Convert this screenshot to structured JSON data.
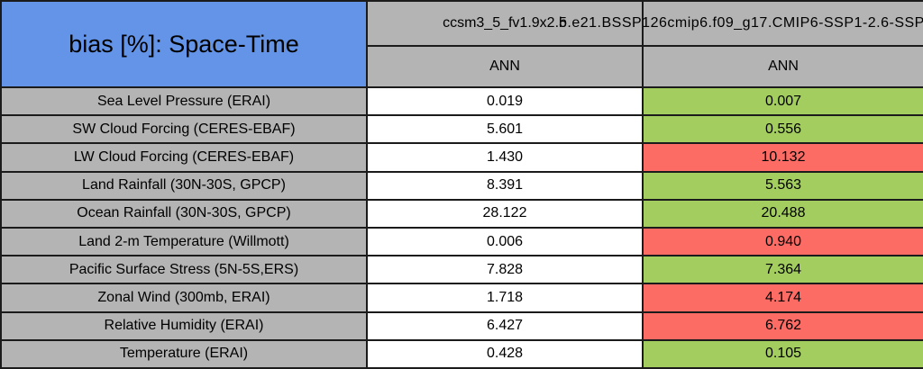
{
  "title": "bias [%]: Space-Time",
  "columns": [
    {
      "model": "ccsm3_5_fv1.9x2.5",
      "season": "ANN"
    },
    {
      "model": "b.e21.BSSP126cmip6.f09_g17.CMIP6-SSP1-2.6-SSP",
      "season": "ANN"
    }
  ],
  "rows": [
    {
      "label": "Sea Level Pressure (ERAI)",
      "values": [
        "0.019",
        "0.007"
      ],
      "col2_status": "better"
    },
    {
      "label": "SW Cloud Forcing (CERES-EBAF)",
      "values": [
        "5.601",
        "0.556"
      ],
      "col2_status": "better"
    },
    {
      "label": "LW Cloud Forcing (CERES-EBAF)",
      "values": [
        "1.430",
        "10.132"
      ],
      "col2_status": "worse"
    },
    {
      "label": "Land Rainfall (30N-30S, GPCP)",
      "values": [
        "8.391",
        "5.563"
      ],
      "col2_status": "better"
    },
    {
      "label": "Ocean Rainfall (30N-30S, GPCP)",
      "values": [
        "28.122",
        "20.488"
      ],
      "col2_status": "better"
    },
    {
      "label": "Land 2-m Temperature (Willmott)",
      "values": [
        "0.006",
        "0.940"
      ],
      "col2_status": "worse"
    },
    {
      "label": "Pacific Surface Stress (5N-5S,ERS)",
      "values": [
        "7.828",
        "7.364"
      ],
      "col2_status": "better"
    },
    {
      "label": "Zonal Wind (300mb, ERAI)",
      "values": [
        "1.718",
        "4.174"
      ],
      "col2_status": "worse"
    },
    {
      "label": "Relative Humidity (ERAI)",
      "values": [
        "6.427",
        "6.762"
      ],
      "col2_status": "worse"
    },
    {
      "label": "Temperature (ERAI)",
      "values": [
        "0.428",
        "0.105"
      ],
      "col2_status": "better"
    }
  ],
  "colors": {
    "title_blue": "#6394E8",
    "cell_gray": "#B4B4B4",
    "better": "#A3CE5F",
    "worse": "#FC6C65"
  },
  "chart_data": {
    "type": "table",
    "title": "bias [%]: Space-Time",
    "columns": [
      "Variable",
      "ccsm3_5_fv1.9x2.5 (ANN)",
      "b.e21.BSSP126cmip6.f09_g17.CMIP6-SSP1-2.6-SSP (ANN)"
    ],
    "rows": [
      [
        "Sea Level Pressure (ERAI)",
        0.019,
        0.007
      ],
      [
        "SW Cloud Forcing (CERES-EBAF)",
        5.601,
        0.556
      ],
      [
        "LW Cloud Forcing (CERES-EBAF)",
        1.43,
        10.132
      ],
      [
        "Land Rainfall (30N-30S, GPCP)",
        8.391,
        5.563
      ],
      [
        "Ocean Rainfall (30N-30S, GPCP)",
        28.122,
        20.488
      ],
      [
        "Land 2-m Temperature (Willmott)",
        0.006,
        0.94
      ],
      [
        "Pacific Surface Stress (5N-5S,ERS)",
        7.828,
        7.364
      ],
      [
        "Zonal Wind (300mb, ERAI)",
        1.718,
        4.174
      ],
      [
        "Relative Humidity (ERAI)",
        6.427,
        6.762
      ],
      [
        "Temperature (ERAI)",
        0.428,
        0.105
      ]
    ],
    "cell_color_meaning": {
      "better": "green",
      "worse": "red"
    },
    "col2_status": [
      "better",
      "better",
      "worse",
      "better",
      "better",
      "worse",
      "better",
      "worse",
      "worse",
      "better"
    ]
  }
}
